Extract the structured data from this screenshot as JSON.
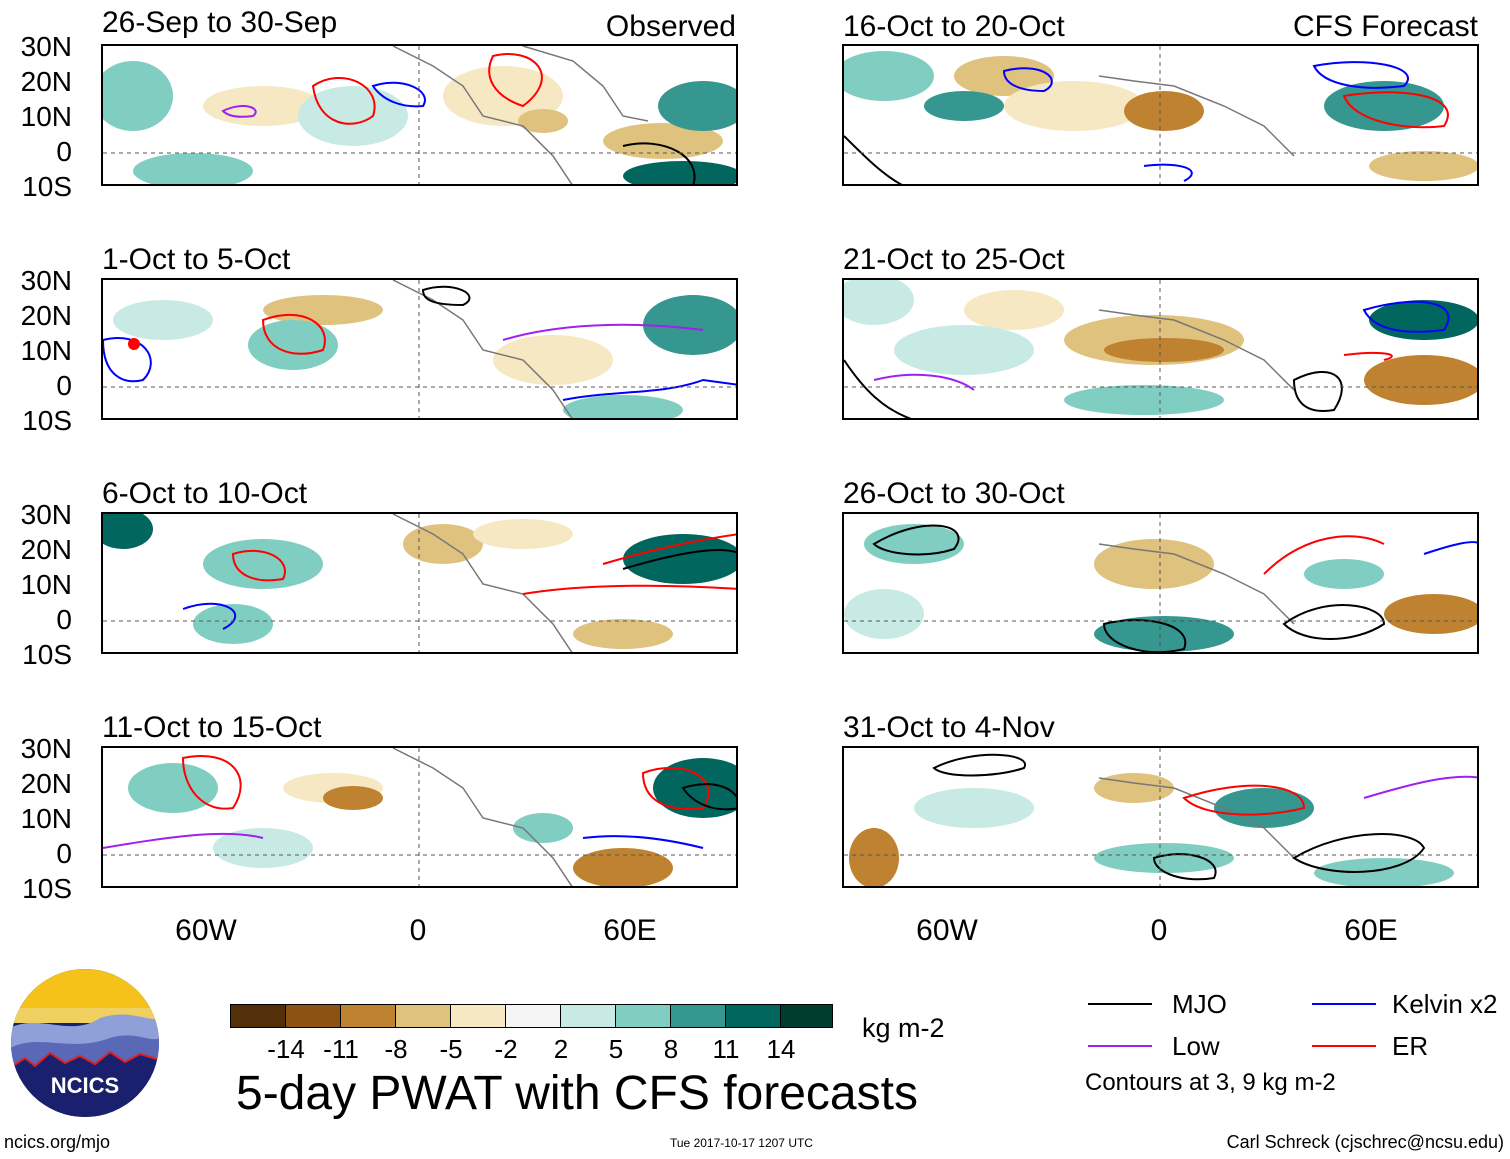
{
  "panels": {
    "p1": {
      "label": "26-Sep to 30-Sep",
      "header": "Observed"
    },
    "p2": {
      "label": "1-Oct to 5-Oct"
    },
    "p3": {
      "label": "6-Oct to 10-Oct"
    },
    "p4": {
      "label": "11-Oct to 15-Oct"
    },
    "p5": {
      "label": "16-Oct to 20-Oct",
      "header": "CFS Forecast"
    },
    "p6": {
      "label": "21-Oct to 25-Oct"
    },
    "p7": {
      "label": "26-Oct to 30-Oct"
    },
    "p8": {
      "label": "31-Oct to 4-Nov"
    }
  },
  "lat_ticks": [
    "30N",
    "20N",
    "10N",
    "0",
    "10S"
  ],
  "lon_ticks": [
    "60W",
    "0",
    "60E"
  ],
  "colorbar": {
    "unit": "kg m-2",
    "labels": [
      "-14",
      "-11",
      "-8",
      "-5",
      "-2",
      "2",
      "5",
      "8",
      "11",
      "14"
    ],
    "colors": [
      "#54300a",
      "#8c5214",
      "#bf8230",
      "#dfc27d",
      "#f6e8c3",
      "#f5f5f5",
      "#c7eae5",
      "#80cdc1",
      "#35978f",
      "#01665e",
      "#003c30"
    ]
  },
  "legend": {
    "mjo": {
      "label": "MJO",
      "color": "#000000"
    },
    "kelvin": {
      "label": "Kelvin x2",
      "color": "#0000ff"
    },
    "low": {
      "label": "Low",
      "color": "#a020f0"
    },
    "er": {
      "label": "ER",
      "color": "#ff0000"
    },
    "note": "Contours at 3, 9 kg m-2"
  },
  "title": "5-day PWAT with CFS forecasts",
  "logo_text": "NCICS",
  "footer": {
    "left": "ncics.org/mjo",
    "center": "Tue 2017-10-17 1207 UTC",
    "right": "Carl Schreck (cjschrec@ncsu.edu)"
  }
}
